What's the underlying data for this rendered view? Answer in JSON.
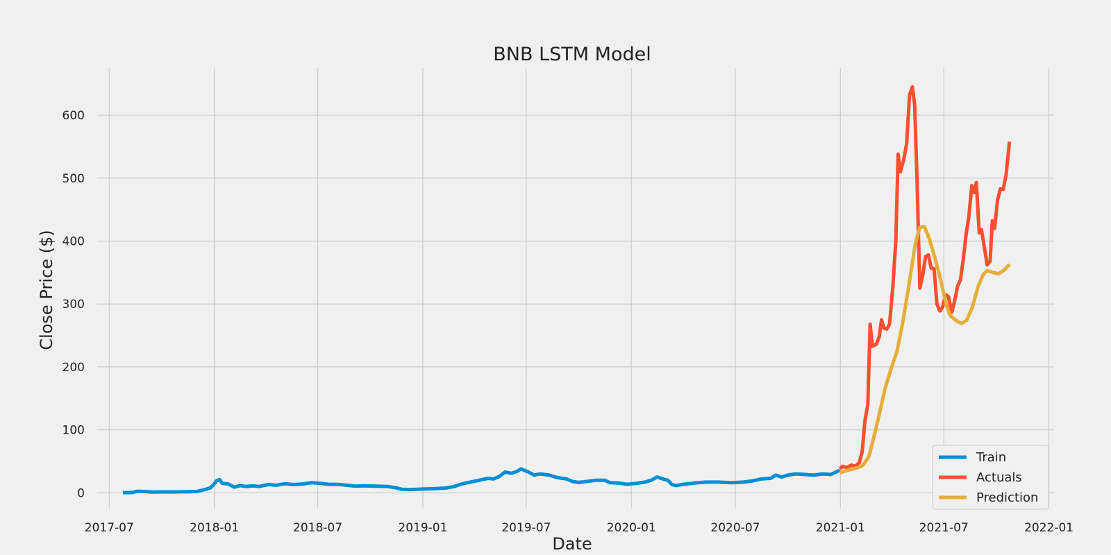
{
  "chart_data": {
    "type": "line",
    "title": "BNB LSTM Model",
    "xlabel": "Date",
    "ylabel": "Close Price ($)",
    "x_range": [
      "2017-06-10",
      "2022-01-10"
    ],
    "ylim": [
      -25,
      675
    ],
    "x_ticks": [
      "2017-07",
      "2018-01",
      "2018-07",
      "2019-01",
      "2019-07",
      "2020-01",
      "2020-07",
      "2021-01",
      "2021-07",
      "2022-01"
    ],
    "y_ticks": [
      0,
      100,
      200,
      300,
      400,
      500,
      600
    ],
    "grid": true,
    "legend_position": "bottom-right",
    "series": [
      {
        "name": "Train",
        "color": "#008fd5",
        "points": [
          [
            "2017-07-25",
            0.1
          ],
          [
            "2017-08-10",
            0.5
          ],
          [
            "2017-08-20",
            2.5
          ],
          [
            "2017-09-01",
            2.0
          ],
          [
            "2017-09-15",
            1.0
          ],
          [
            "2017-10-01",
            1.5
          ],
          [
            "2017-10-20",
            1.4
          ],
          [
            "2017-11-10",
            1.6
          ],
          [
            "2017-12-01",
            2.0
          ],
          [
            "2017-12-15",
            5.0
          ],
          [
            "2017-12-25",
            8.0
          ],
          [
            "2017-12-30",
            12.0
          ],
          [
            "2018-01-05",
            19.0
          ],
          [
            "2018-01-10",
            21.0
          ],
          [
            "2018-01-15",
            15.0
          ],
          [
            "2018-01-25",
            14.0
          ],
          [
            "2018-02-05",
            9.0
          ],
          [
            "2018-02-15",
            11.5
          ],
          [
            "2018-02-25",
            10.0
          ],
          [
            "2018-03-10",
            11.0
          ],
          [
            "2018-03-20",
            10.0
          ],
          [
            "2018-04-05",
            13.0
          ],
          [
            "2018-04-20",
            12.0
          ],
          [
            "2018-05-05",
            14.5
          ],
          [
            "2018-05-20",
            13.0
          ],
          [
            "2018-06-05",
            14.0
          ],
          [
            "2018-06-20",
            16.0
          ],
          [
            "2018-07-05",
            15.0
          ],
          [
            "2018-07-20",
            13.5
          ],
          [
            "2018-08-05",
            13.5
          ],
          [
            "2018-08-20",
            12.0
          ],
          [
            "2018-09-05",
            10.5
          ],
          [
            "2018-09-20",
            11.0
          ],
          [
            "2018-10-10",
            10.5
          ],
          [
            "2018-11-01",
            10.0
          ],
          [
            "2018-11-15",
            8.0
          ],
          [
            "2018-11-25",
            5.5
          ],
          [
            "2018-12-10",
            5.0
          ],
          [
            "2019-01-01",
            6.0
          ],
          [
            "2019-01-20",
            6.5
          ],
          [
            "2019-02-10",
            7.5
          ],
          [
            "2019-02-25",
            10.0
          ],
          [
            "2019-03-10",
            14.0
          ],
          [
            "2019-03-25",
            17.0
          ],
          [
            "2019-04-10",
            20.0
          ],
          [
            "2019-04-25",
            23.0
          ],
          [
            "2019-05-05",
            22.0
          ],
          [
            "2019-05-15",
            26.0
          ],
          [
            "2019-05-25",
            33.0
          ],
          [
            "2019-06-05",
            31.0
          ],
          [
            "2019-06-15",
            34.0
          ],
          [
            "2019-06-22",
            38.0
          ],
          [
            "2019-07-05",
            33.0
          ],
          [
            "2019-07-15",
            28.0
          ],
          [
            "2019-07-25",
            30.0
          ],
          [
            "2019-08-10",
            28.0
          ],
          [
            "2019-08-25",
            24.0
          ],
          [
            "2019-09-10",
            22.0
          ],
          [
            "2019-09-20",
            18.0
          ],
          [
            "2019-10-01",
            16.5
          ],
          [
            "2019-10-15",
            18.0
          ],
          [
            "2019-11-01",
            20.0
          ],
          [
            "2019-11-15",
            20.0
          ],
          [
            "2019-11-25",
            16.0
          ],
          [
            "2019-12-10",
            15.5
          ],
          [
            "2019-12-25",
            13.5
          ],
          [
            "2020-01-10",
            15.0
          ],
          [
            "2020-01-25",
            17.0
          ],
          [
            "2020-02-05",
            20.0
          ],
          [
            "2020-02-15",
            25.0
          ],
          [
            "2020-02-25",
            22.0
          ],
          [
            "2020-03-05",
            20.0
          ],
          [
            "2020-03-12",
            13.0
          ],
          [
            "2020-03-20",
            11.5
          ],
          [
            "2020-04-01",
            13.5
          ],
          [
            "2020-04-20",
            15.5
          ],
          [
            "2020-05-10",
            17.0
          ],
          [
            "2020-06-01",
            17.0
          ],
          [
            "2020-06-25",
            16.0
          ],
          [
            "2020-07-15",
            17.0
          ],
          [
            "2020-08-01",
            19.0
          ],
          [
            "2020-08-15",
            22.0
          ],
          [
            "2020-09-01",
            23.0
          ],
          [
            "2020-09-10",
            28.0
          ],
          [
            "2020-09-20",
            25.0
          ],
          [
            "2020-10-01",
            28.0
          ],
          [
            "2020-10-15",
            30.0
          ],
          [
            "2020-11-01",
            29.0
          ],
          [
            "2020-11-15",
            28.0
          ],
          [
            "2020-12-01",
            30.0
          ],
          [
            "2020-12-15",
            29.0
          ],
          [
            "2020-12-31",
            36.0
          ]
        ]
      },
      {
        "name": "Actuals",
        "color": "#fc4f30",
        "points": [
          [
            "2020-12-31",
            38.0
          ],
          [
            "2021-01-05",
            42.0
          ],
          [
            "2021-01-12",
            40.0
          ],
          [
            "2021-01-20",
            44.0
          ],
          [
            "2021-01-27",
            42.0
          ],
          [
            "2021-02-03",
            48.0
          ],
          [
            "2021-02-08",
            65.0
          ],
          [
            "2021-02-13",
            115.0
          ],
          [
            "2021-02-18",
            140.0
          ],
          [
            "2021-02-22",
            268.0
          ],
          [
            "2021-02-26",
            233.0
          ],
          [
            "2021-03-05",
            236.0
          ],
          [
            "2021-03-10",
            248.0
          ],
          [
            "2021-03-14",
            275.0
          ],
          [
            "2021-03-18",
            262.0
          ],
          [
            "2021-03-23",
            260.0
          ],
          [
            "2021-03-28",
            268.0
          ],
          [
            "2021-04-03",
            330.0
          ],
          [
            "2021-04-08",
            400.0
          ],
          [
            "2021-04-12",
            538.0
          ],
          [
            "2021-04-16",
            510.0
          ],
          [
            "2021-04-22",
            530.0
          ],
          [
            "2021-04-27",
            555.0
          ],
          [
            "2021-05-02",
            632.0
          ],
          [
            "2021-05-07",
            645.0
          ],
          [
            "2021-05-11",
            615.0
          ],
          [
            "2021-05-15",
            500.0
          ],
          [
            "2021-05-20",
            325.0
          ],
          [
            "2021-05-25",
            345.0
          ],
          [
            "2021-05-30",
            375.0
          ],
          [
            "2021-06-04",
            378.0
          ],
          [
            "2021-06-09",
            357.0
          ],
          [
            "2021-06-14",
            356.0
          ],
          [
            "2021-06-19",
            300.0
          ],
          [
            "2021-06-24",
            289.0
          ],
          [
            "2021-06-29",
            295.0
          ],
          [
            "2021-07-04",
            315.0
          ],
          [
            "2021-07-09",
            312.0
          ],
          [
            "2021-07-15",
            287.0
          ],
          [
            "2021-07-20",
            305.0
          ],
          [
            "2021-07-25",
            328.0
          ],
          [
            "2021-07-30",
            338.0
          ],
          [
            "2021-08-04",
            370.0
          ],
          [
            "2021-08-09",
            410.0
          ],
          [
            "2021-08-14",
            440.0
          ],
          [
            "2021-08-19",
            488.0
          ],
          [
            "2021-08-23",
            477.0
          ],
          [
            "2021-08-27",
            493.0
          ],
          [
            "2021-09-01",
            413.0
          ],
          [
            "2021-09-05",
            418.0
          ],
          [
            "2021-09-10",
            390.0
          ],
          [
            "2021-09-15",
            362.0
          ],
          [
            "2021-09-20",
            368.0
          ],
          [
            "2021-09-24",
            432.0
          ],
          [
            "2021-09-28",
            420.0
          ],
          [
            "2021-10-03",
            465.0
          ],
          [
            "2021-10-08",
            483.0
          ],
          [
            "2021-10-13",
            482.0
          ],
          [
            "2021-10-18",
            505.0
          ],
          [
            "2021-10-24",
            558.0
          ]
        ]
      },
      {
        "name": "Prediction",
        "color": "#e5ae38",
        "points": [
          [
            "2020-12-31",
            32.0
          ],
          [
            "2021-01-15",
            36.0
          ],
          [
            "2021-02-01",
            40.0
          ],
          [
            "2021-02-10",
            44.0
          ],
          [
            "2021-02-20",
            58.0
          ],
          [
            "2021-03-01",
            90.0
          ],
          [
            "2021-03-10",
            125.0
          ],
          [
            "2021-03-20",
            165.0
          ],
          [
            "2021-03-30",
            195.0
          ],
          [
            "2021-04-10",
            225.0
          ],
          [
            "2021-04-20",
            270.0
          ],
          [
            "2021-05-01",
            330.0
          ],
          [
            "2021-05-12",
            395.0
          ],
          [
            "2021-05-20",
            422.0
          ],
          [
            "2021-05-28",
            423.0
          ],
          [
            "2021-06-05",
            405.0
          ],
          [
            "2021-06-15",
            375.0
          ],
          [
            "2021-06-25",
            340.0
          ],
          [
            "2021-07-05",
            300.0
          ],
          [
            "2021-07-12",
            282.0
          ],
          [
            "2021-07-22",
            274.0
          ],
          [
            "2021-08-01",
            269.0
          ],
          [
            "2021-08-10",
            274.0
          ],
          [
            "2021-08-20",
            295.0
          ],
          [
            "2021-08-30",
            328.0
          ],
          [
            "2021-09-08",
            347.0
          ],
          [
            "2021-09-15",
            353.0
          ],
          [
            "2021-09-25",
            350.0
          ],
          [
            "2021-10-05",
            348.0
          ],
          [
            "2021-10-15",
            354.0
          ],
          [
            "2021-10-24",
            363.0
          ]
        ]
      }
    ]
  }
}
